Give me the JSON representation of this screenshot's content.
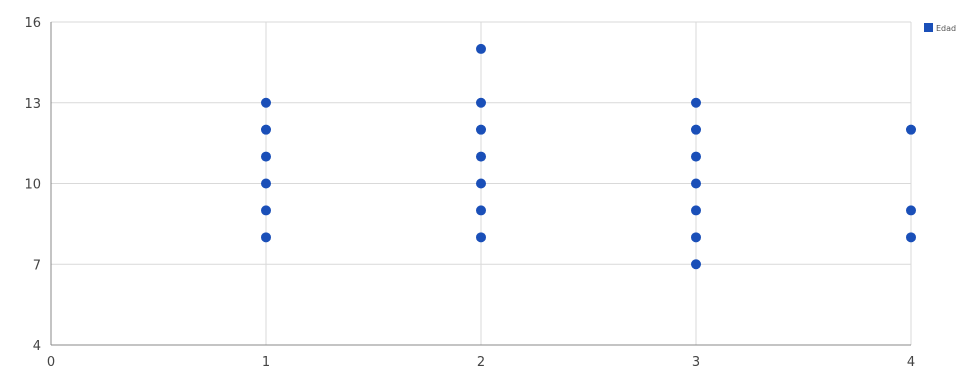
{
  "chart_data": {
    "type": "scatter",
    "title": "",
    "xlabel": "",
    "ylabel": "",
    "xlim": [
      0,
      4
    ],
    "ylim": [
      4,
      16
    ],
    "x_ticks": [
      0,
      1,
      2,
      3,
      4
    ],
    "y_ticks": [
      4,
      7,
      10,
      13,
      16
    ],
    "x_tick_labels": [
      "0",
      "1",
      "2",
      "3",
      "4"
    ],
    "y_tick_labels": [
      "4",
      "7",
      "10",
      "13",
      "16"
    ],
    "grid": true,
    "legend_position": "top-right",
    "series": [
      {
        "name": "Edad",
        "color": "#1a4fb8",
        "points": [
          [
            1,
            8
          ],
          [
            1,
            9
          ],
          [
            1,
            10
          ],
          [
            1,
            11
          ],
          [
            1,
            12
          ],
          [
            1,
            13
          ],
          [
            2,
            8
          ],
          [
            2,
            9
          ],
          [
            2,
            10
          ],
          [
            2,
            11
          ],
          [
            2,
            12
          ],
          [
            2,
            13
          ],
          [
            2,
            15
          ],
          [
            3,
            7
          ],
          [
            3,
            8
          ],
          [
            3,
            9
          ],
          [
            3,
            10
          ],
          [
            3,
            11
          ],
          [
            3,
            12
          ],
          [
            3,
            13
          ],
          [
            4,
            8
          ],
          [
            4,
            9
          ],
          [
            4,
            12
          ]
        ]
      }
    ]
  }
}
